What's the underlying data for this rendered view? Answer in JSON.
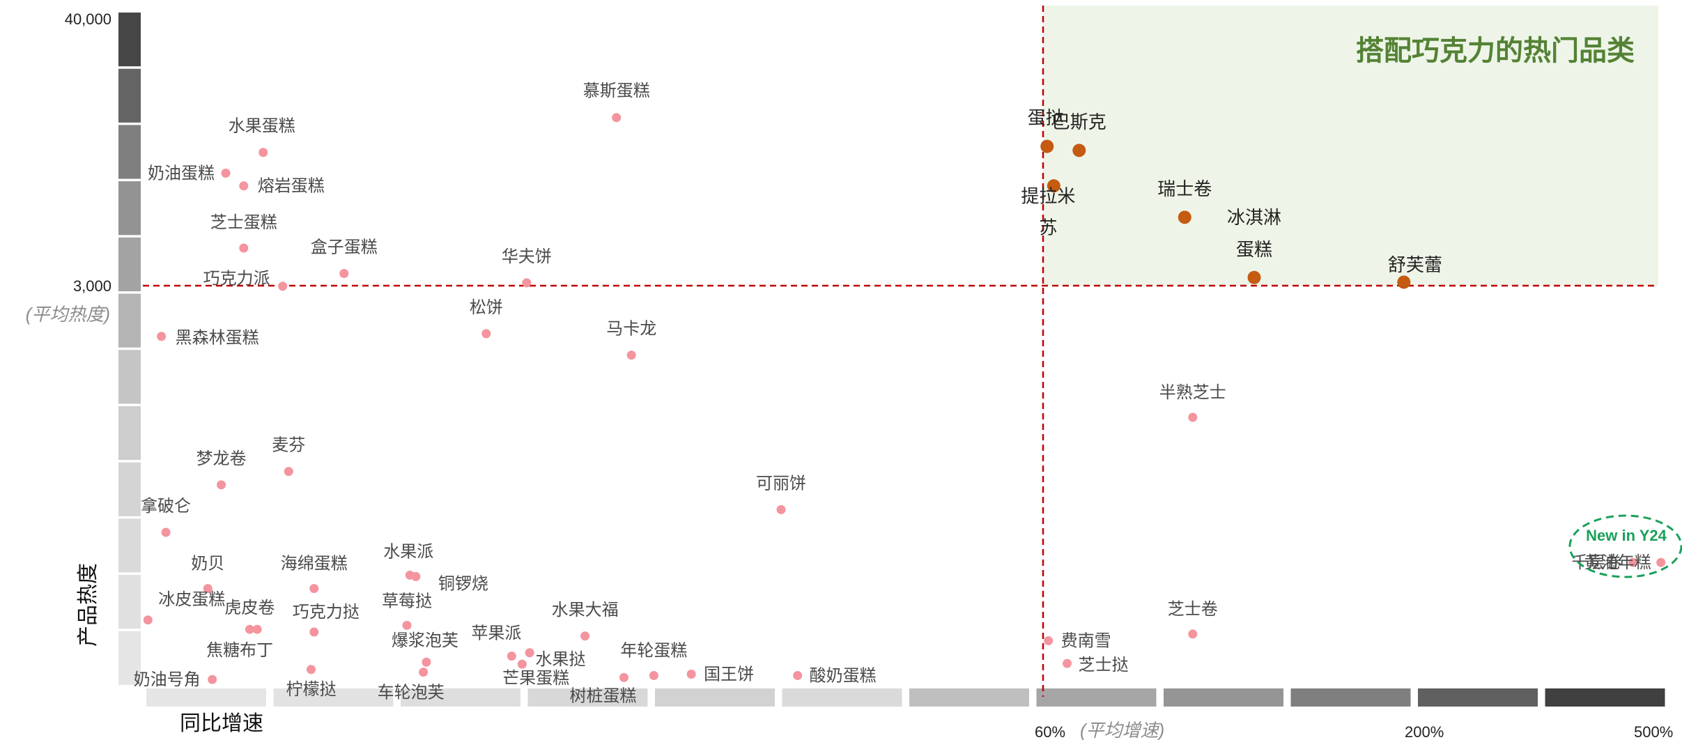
{
  "chart_data": {
    "type": "scatter",
    "title": "",
    "xlabel": "同比增速",
    "ylabel": "产品热度",
    "highlight_region": {
      "label": "搭配巧克力的热门品类",
      "color": "#eef5e8",
      "title_color": "#548235"
    },
    "y_ticks": [
      {
        "value": "40,000",
        "level": 40000
      },
      {
        "value": "3,000",
        "level": 3000
      }
    ],
    "y_avg_label": "(平均热度)",
    "x_ticks": [
      {
        "value": "60%",
        "level": 60
      },
      {
        "value": "200%",
        "level": 200
      },
      {
        "value": "500%",
        "level": 500
      }
    ],
    "x_avg_label": "(平均增速)",
    "reference_lines": {
      "y_avg": 3000,
      "x_avg": 60,
      "color": "#c00000"
    },
    "colors": {
      "normal": "#f4949e",
      "highlight": "#c55a11",
      "new_tag": "#1aa05a"
    },
    "new_tag": "New in Y24",
    "points": [
      {
        "name": "慕斯蛋糕",
        "g": 31.5,
        "h": 0.845,
        "hi": false
      },
      {
        "name": "水果蛋糕",
        "g": 7.9,
        "h": 0.793,
        "hi": false
      },
      {
        "name": "奶油蛋糕",
        "g": 5.4,
        "h": 0.762,
        "hi": false
      },
      {
        "name": "熔岩蛋糕",
        "g": 6.6,
        "h": 0.743,
        "hi": false
      },
      {
        "name": "芝士蛋糕",
        "g": 6.6,
        "h": 0.65,
        "hi": false
      },
      {
        "name": "盒子蛋糕",
        "g": 13.3,
        "h": 0.612,
        "hi": false
      },
      {
        "name": "巧克力派",
        "g": 9.2,
        "h": 0.593,
        "hi": false
      },
      {
        "name": "华夫饼",
        "g": 25.5,
        "h": 0.598,
        "hi": false
      },
      {
        "name": "松饼",
        "g": 22.8,
        "h": 0.522,
        "hi": false
      },
      {
        "name": "马卡龙",
        "g": 32.5,
        "h": 0.49,
        "hi": false
      },
      {
        "name": "黑森林蛋糕",
        "g": 1.1,
        "h": 0.518,
        "hi": false
      },
      {
        "name": "麦芬",
        "g": 9.6,
        "h": 0.316,
        "hi": false
      },
      {
        "name": "梦龙卷",
        "g": 5.1,
        "h": 0.296,
        "hi": false
      },
      {
        "name": "拿破仑",
        "g": 1.4,
        "h": 0.225,
        "hi": false
      },
      {
        "name": "可丽饼",
        "g": 42.5,
        "h": 0.259,
        "hi": false
      },
      {
        "name": "奶贝",
        "g": 4.2,
        "h": 0.141,
        "hi": false
      },
      {
        "name": "海绵蛋糕",
        "g": 11.3,
        "h": 0.141,
        "hi": false
      },
      {
        "name": "水果派",
        "g": 17.7,
        "h": 0.161,
        "hi": false
      },
      {
        "name": "铜锣烧",
        "g": 18.1,
        "h": 0.159,
        "hi": false
      },
      {
        "name": "冰皮蛋糕",
        "g": 0.2,
        "h": 0.094,
        "hi": false
      },
      {
        "name": "虎皮卷",
        "g": 7.0,
        "h": 0.08,
        "hi": false
      },
      {
        "name": "草莓挞",
        "g": 17.5,
        "h": 0.086,
        "hi": false
      },
      {
        "name": "焦糖布丁",
        "g": 7.5,
        "h": 0.08,
        "hi": false
      },
      {
        "name": "巧克力挞",
        "g": 11.3,
        "h": 0.076,
        "hi": false
      },
      {
        "name": "苹果派",
        "g": 24.5,
        "h": 0.04,
        "hi": false
      },
      {
        "name": "水果大福",
        "g": 29.4,
        "h": 0.07,
        "hi": false
      },
      {
        "name": "爆浆泡芙",
        "g": 18.8,
        "h": 0.031,
        "hi": false
      },
      {
        "name": "水果挞",
        "g": 25.2,
        "h": 0.028,
        "hi": false
      },
      {
        "name": "年轮蛋糕",
        "g": 34.0,
        "h": 0.011,
        "hi": false
      },
      {
        "name": "芒果蛋糕",
        "g": 25.7,
        "h": 0.045,
        "hi": false
      },
      {
        "name": "奶油号角",
        "g": 4.5,
        "h": 0.005,
        "hi": false
      },
      {
        "name": "柠檬挞",
        "g": 11.1,
        "h": 0.02,
        "hi": false
      },
      {
        "name": "车轮泡芙",
        "g": 18.6,
        "h": 0.016,
        "hi": false
      },
      {
        "name": "树桩蛋糕",
        "g": 32.0,
        "h": 0.008,
        "hi": false
      },
      {
        "name": "国王饼",
        "g": 36.5,
        "h": 0.013,
        "hi": false
      },
      {
        "name": "酸奶蛋糕",
        "g": 43.6,
        "h": 0.011,
        "hi": false
      },
      {
        "name": "蛋挞",
        "g": 61.5,
        "h": 0.802,
        "hi": true
      },
      {
        "name": "巴斯克",
        "g": 73.5,
        "h": 0.796,
        "hi": true
      },
      {
        "name": "提拉米苏",
        "g": 64.0,
        "h": 0.743,
        "hi": true
      },
      {
        "name": "瑞士卷",
        "g": 113.0,
        "h": 0.696,
        "hi": true
      },
      {
        "name": "冰淇淋蛋糕",
        "g": 139.0,
        "h": 0.606,
        "hi": true
      },
      {
        "name": "舒芙蕾",
        "g": 195.0,
        "h": 0.599,
        "hi": true
      },
      {
        "name": "半熟芝士",
        "g": 116.0,
        "h": 0.397,
        "hi": false
      },
      {
        "name": "费南雪",
        "g": 62.0,
        "h": 0.063,
        "hi": false
      },
      {
        "name": "芝士挞",
        "g": 69.0,
        "h": 0.029,
        "hi": false
      },
      {
        "name": "芝士卷",
        "g": 116.0,
        "h": 0.073,
        "hi": false
      },
      {
        "name": "千层卷",
        "g": 470.0,
        "h": 0.18,
        "hi": false
      },
      {
        "name": "黄油年糕",
        "g": 505.0,
        "h": 0.18,
        "hi": false
      }
    ]
  }
}
